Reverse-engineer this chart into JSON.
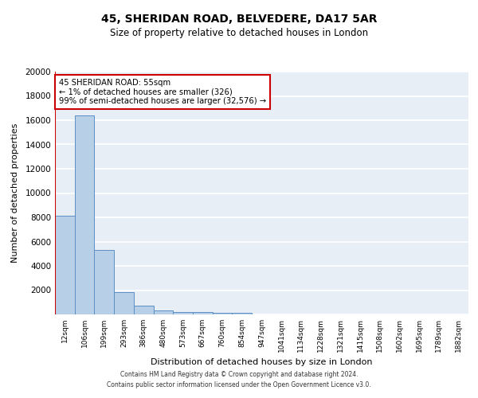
{
  "title1": "45, SHERIDAN ROAD, BELVEDERE, DA17 5AR",
  "title2": "Size of property relative to detached houses in London",
  "xlabel": "Distribution of detached houses by size in London",
  "ylabel": "Number of detached properties",
  "categories": [
    "12sqm",
    "106sqm",
    "199sqm",
    "293sqm",
    "386sqm",
    "480sqm",
    "573sqm",
    "667sqm",
    "760sqm",
    "854sqm",
    "947sqm",
    "1041sqm",
    "1134sqm",
    "1228sqm",
    "1321sqm",
    "1415sqm",
    "1508sqm",
    "1602sqm",
    "1695sqm",
    "1789sqm",
    "1882sqm"
  ],
  "values": [
    8100,
    16400,
    5300,
    1850,
    700,
    300,
    200,
    175,
    155,
    140,
    0,
    0,
    0,
    0,
    0,
    0,
    0,
    0,
    0,
    0,
    0
  ],
  "bar_color": "#b8cfe8",
  "bar_edge_color": "#5b8ec4",
  "vline_color": "#cc0000",
  "vline_x_index": 0,
  "annotation_text": "45 SHERIDAN ROAD: 55sqm\n← 1% of detached houses are smaller (326)\n99% of semi-detached houses are larger (32,576) →",
  "ylim": [
    0,
    20000
  ],
  "yticks": [
    0,
    2000,
    4000,
    6000,
    8000,
    10000,
    12000,
    14000,
    16000,
    18000,
    20000
  ],
  "bg_color": "#e8eef5",
  "grid_color": "#ffffff",
  "footer1": "Contains HM Land Registry data © Crown copyright and database right 2024.",
  "footer2": "Contains public sector information licensed under the Open Government Licence v3.0."
}
